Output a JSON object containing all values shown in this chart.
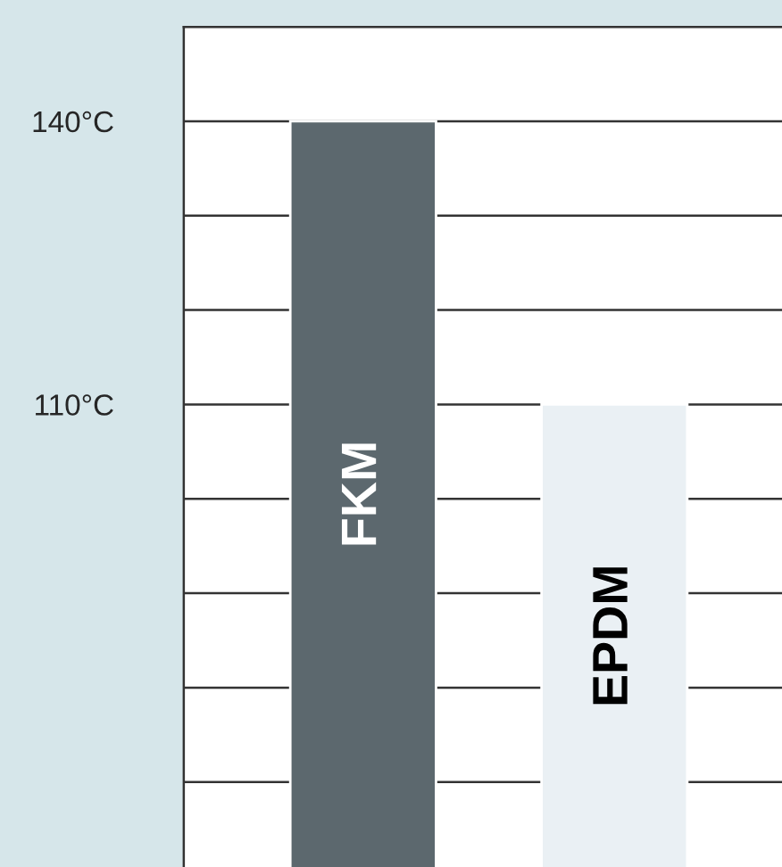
{
  "chart_data": {
    "type": "bar",
    "categories": [
      "FKM",
      "EPDM"
    ],
    "values": [
      140,
      110
    ],
    "colors": [
      "#5c686e",
      "#eaf0f4"
    ],
    "ylim": [
      61,
      150
    ],
    "yticks": [
      {
        "value": 70,
        "label": null
      },
      {
        "value": 80,
        "label": null
      },
      {
        "value": 90,
        "label": null
      },
      {
        "value": 100,
        "label": null
      },
      {
        "value": 110,
        "label": "110°C"
      },
      {
        "value": 120,
        "label": null
      },
      {
        "value": 130,
        "label": null
      },
      {
        "value": 140,
        "label": "140°C"
      }
    ],
    "grid": "y",
    "tick_labels": "y"
  }
}
